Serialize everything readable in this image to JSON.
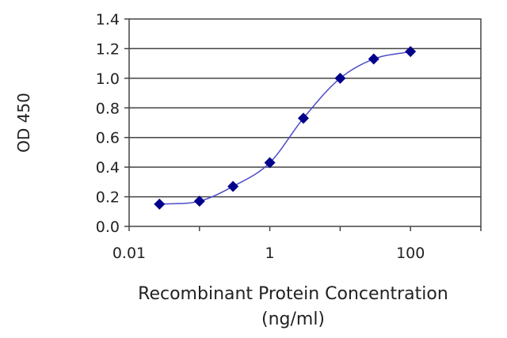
{
  "chart_data": {
    "type": "scatter",
    "title": "",
    "xlabel": "Recombinant Protein Concentration",
    "xlabel_line2": "(ng/ml)",
    "ylabel": "OD 450",
    "xscale": "log",
    "xlim": [
      0.01,
      1000
    ],
    "ylim": [
      0,
      1.4
    ],
    "x_ticks": [
      0.01,
      1,
      100
    ],
    "x_tick_labels": [
      "0.01",
      "1",
      "100"
    ],
    "y_ticks": [
      0,
      0.2,
      0.4,
      0.6,
      0.8,
      1.0,
      1.2,
      1.4
    ],
    "y_tick_labels": [
      "0.0",
      "0.2",
      "0.4",
      "0.6",
      "0.8",
      "1.0",
      "1.2",
      "1.4"
    ],
    "grid": "horizontal",
    "legend": "none",
    "fit_curve": "sigmoidal",
    "series": [
      {
        "x": [
          0.027,
          0.1,
          0.3,
          1,
          3,
          10,
          30,
          100
        ],
        "y": [
          0.15,
          0.17,
          0.27,
          0.43,
          0.73,
          1.0,
          1.13,
          1.18
        ],
        "color": "#00008b",
        "marker": "diamond"
      }
    ]
  }
}
